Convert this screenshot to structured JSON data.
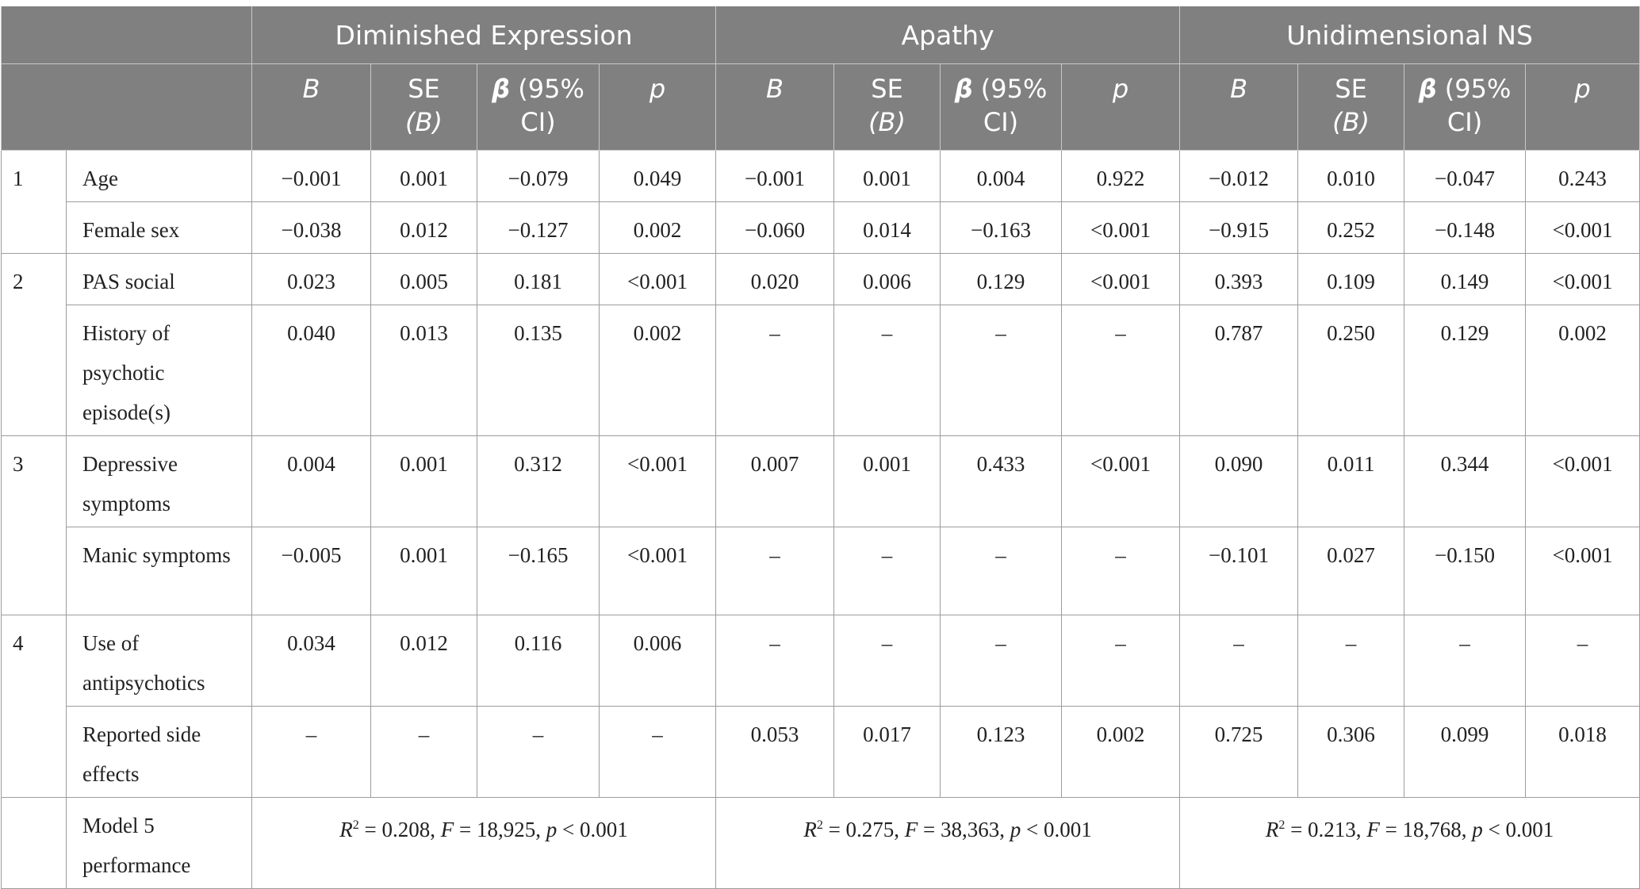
{
  "groups": [
    "Diminished Expression",
    "Apathy",
    "Unidimensional NS"
  ],
  "subheaders": {
    "b": "B",
    "se_a": "SE",
    "se_b": "(B)",
    "beta": "β",
    "beta_rest_a": " (95%",
    "beta_rest_b": "CI)",
    "p": "p"
  },
  "rows": [
    {
      "step": "1",
      "label": "Age",
      "cells": [
        "−0.001",
        "0.001",
        "−0.079",
        "0.049",
        "−0.001",
        "0.001",
        "0.004",
        "0.922",
        "−0.012",
        "0.010",
        "−0.047",
        "0.243"
      ]
    },
    {
      "step": "",
      "label": "Female sex",
      "cells": [
        "−0.038",
        "0.012",
        "−0.127",
        "0.002",
        "−0.060",
        "0.014",
        "−0.163",
        "<0.001",
        "−0.915",
        "0.252",
        "−0.148",
        "<0.001"
      ]
    },
    {
      "step": "2",
      "label": "PAS social",
      "cells": [
        "0.023",
        "0.005",
        "0.181",
        "<0.001",
        "0.020",
        "0.006",
        "0.129",
        "<0.001",
        "0.393",
        "0.109",
        "0.149",
        "<0.001"
      ]
    },
    {
      "step": "",
      "label": "History of psychotic episode(s)",
      "cells": [
        "0.040",
        "0.013",
        "0.135",
        "0.002",
        "–",
        "–",
        "–",
        "–",
        "0.787",
        "0.250",
        "0.129",
        "0.002"
      ]
    },
    {
      "step": "3",
      "label": "Depressive symptoms",
      "cells": [
        "0.004",
        "0.001",
        "0.312",
        "<0.001",
        "0.007",
        "0.001",
        "0.433",
        "<0.001",
        "0.090",
        "0.011",
        "0.344",
        "<0.001"
      ]
    },
    {
      "step": "",
      "label": "Manic symptoms",
      "cells": [
        "−0.005",
        "0.001",
        "−0.165",
        "<0.001",
        "–",
        "–",
        "–",
        "–",
        "−0.101",
        "0.027",
        "−0.150",
        "<0.001"
      ]
    },
    {
      "step": "4",
      "label": "Use of antipsychotics",
      "cells": [
        "0.034",
        "0.012",
        "0.116",
        "0.006",
        "–",
        "–",
        "–",
        "–",
        "–",
        "–",
        "–",
        "–"
      ]
    },
    {
      "step": "",
      "label": "Reported side effects",
      "cells": [
        "–",
        "–",
        "–",
        "–",
        "0.053",
        "0.017",
        "0.123",
        "0.002",
        "0.725",
        "0.306",
        "0.099",
        "0.018"
      ]
    }
  ],
  "model": {
    "label": "Model 5 performance",
    "r_letter": "R",
    "r_exp": "2",
    "f_letter": "F",
    "p_letter": "p",
    "results": [
      {
        "r2": " = 0.208, ",
        "f": " = 18,925, ",
        "p": " < 0.001"
      },
      {
        "r2": " = 0.275, ",
        "f": " = 38,363, ",
        "p": " < 0.001"
      },
      {
        "r2": " = 0.213, ",
        "f": " = 18,768, ",
        "p": " < 0.001"
      }
    ]
  }
}
